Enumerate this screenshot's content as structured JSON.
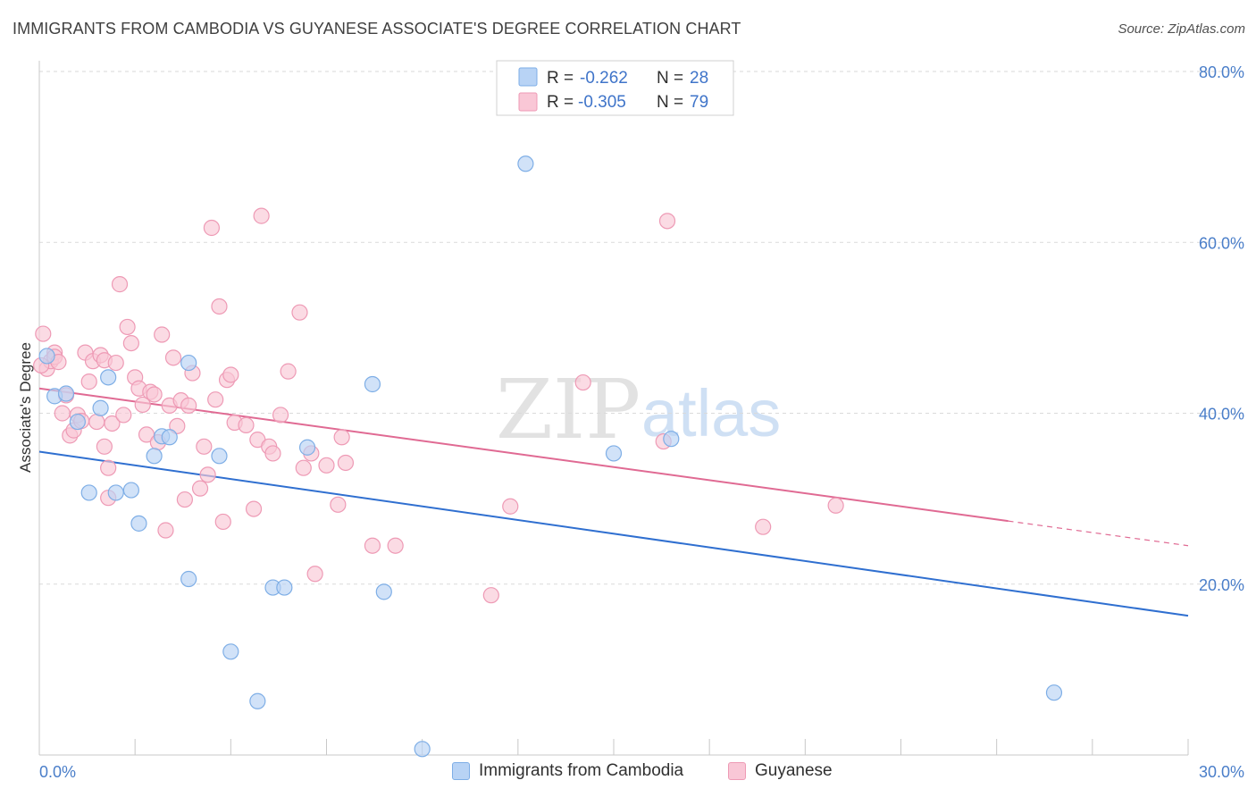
{
  "header": {
    "title": "IMMIGRANTS FROM CAMBODIA VS GUYANESE ASSOCIATE'S DEGREE CORRELATION CHART",
    "source": "Source: ZipAtlas.com"
  },
  "watermark": {
    "zip": "ZIP",
    "atlas": "atlas"
  },
  "legend": {
    "rows": [
      {
        "r_label": "R =",
        "r_value": "-0.262",
        "n_label": "N =",
        "n_value": "28"
      },
      {
        "r_label": "R =",
        "r_value": "-0.305",
        "n_label": "N =",
        "n_value": "79"
      }
    ]
  },
  "bottom_legend": {
    "series1": "Immigrants from Cambodia",
    "series2": "Guyanese"
  },
  "colors": {
    "series1_fill": "#b8d3f5",
    "series1_stroke": "#7eaee6",
    "series1_line": "#2f6fd0",
    "series2_fill": "#f9c7d6",
    "series2_stroke": "#ee9ab5",
    "series2_line": "#e06a93",
    "tick": "#4a7ec9",
    "grid": "#dadada"
  },
  "chart_data": {
    "type": "scatter",
    "title": "IMMIGRANTS FROM CAMBODIA VS GUYANESE ASSOCIATE'S DEGREE CORRELATION CHART",
    "xlabel": "",
    "ylabel": "Associate's Degree",
    "xlim": [
      0,
      30
    ],
    "ylim": [
      0,
      80
    ],
    "x_ticks": [
      "0.0%",
      "30.0%"
    ],
    "y_ticks": [
      "20.0%",
      "40.0%",
      "60.0%",
      "80.0%"
    ],
    "y_tick_values": [
      20,
      40,
      60,
      80
    ],
    "grid": "horizontal dashed",
    "legend_position": "top-center",
    "series": [
      {
        "name": "Immigrants from Cambodia",
        "r": -0.262,
        "n": 28,
        "trend": {
          "x": [
            0,
            30
          ],
          "y": [
            35.5,
            16.3
          ],
          "dashed_from": null
        },
        "points": [
          [
            0.2,
            46.7
          ],
          [
            0.4,
            42.0
          ],
          [
            0.7,
            42.3
          ],
          [
            1.0,
            39.0
          ],
          [
            1.3,
            30.7
          ],
          [
            1.6,
            40.6
          ],
          [
            1.8,
            44.2
          ],
          [
            2.0,
            30.7
          ],
          [
            2.4,
            31.0
          ],
          [
            2.6,
            27.1
          ],
          [
            3.0,
            35.0
          ],
          [
            3.2,
            37.3
          ],
          [
            3.4,
            37.2
          ],
          [
            3.9,
            20.6
          ],
          [
            3.9,
            45.9
          ],
          [
            4.7,
            35.0
          ],
          [
            5.0,
            12.1
          ],
          [
            5.7,
            6.3
          ],
          [
            6.1,
            19.6
          ],
          [
            6.4,
            19.6
          ],
          [
            7.0,
            36.0
          ],
          [
            8.7,
            43.4
          ],
          [
            9.0,
            19.1
          ],
          [
            10.0,
            0.7
          ],
          [
            12.7,
            69.2
          ],
          [
            15.0,
            35.3
          ],
          [
            16.5,
            37.0
          ],
          [
            26.5,
            7.3
          ]
        ]
      },
      {
        "name": "Guyanese",
        "r": -0.305,
        "n": 79,
        "trend": {
          "x": [
            0,
            30
          ],
          "y": [
            42.9,
            24.5
          ],
          "dashed_from": 25.3
        },
        "points": [
          [
            0.1,
            49.3
          ],
          [
            0.2,
            45.2
          ],
          [
            0.3,
            46.1
          ],
          [
            0.4,
            47.1
          ],
          [
            0.4,
            46.6
          ],
          [
            0.5,
            46.0
          ],
          [
            0.6,
            40.0
          ],
          [
            0.7,
            42.1
          ],
          [
            0.8,
            37.4
          ],
          [
            0.9,
            38.0
          ],
          [
            1.0,
            39.8
          ],
          [
            1.1,
            39.1
          ],
          [
            1.2,
            47.1
          ],
          [
            1.3,
            43.7
          ],
          [
            1.4,
            46.1
          ],
          [
            1.5,
            39.0
          ],
          [
            1.6,
            46.8
          ],
          [
            1.7,
            46.2
          ],
          [
            1.7,
            36.1
          ],
          [
            1.8,
            33.6
          ],
          [
            1.8,
            30.1
          ],
          [
            1.9,
            38.8
          ],
          [
            2.0,
            45.9
          ],
          [
            2.1,
            55.1
          ],
          [
            2.2,
            39.8
          ],
          [
            2.3,
            50.1
          ],
          [
            2.4,
            48.2
          ],
          [
            2.5,
            44.2
          ],
          [
            2.6,
            42.9
          ],
          [
            2.7,
            41.0
          ],
          [
            2.8,
            37.5
          ],
          [
            2.9,
            42.5
          ],
          [
            3.0,
            42.2
          ],
          [
            3.1,
            36.6
          ],
          [
            3.2,
            49.2
          ],
          [
            3.3,
            26.3
          ],
          [
            3.4,
            40.9
          ],
          [
            3.5,
            46.5
          ],
          [
            3.6,
            38.5
          ],
          [
            3.7,
            41.5
          ],
          [
            3.8,
            29.9
          ],
          [
            3.9,
            40.9
          ],
          [
            4.0,
            44.7
          ],
          [
            4.2,
            31.2
          ],
          [
            4.3,
            36.1
          ],
          [
            4.4,
            32.8
          ],
          [
            4.5,
            61.7
          ],
          [
            4.6,
            41.6
          ],
          [
            4.7,
            52.5
          ],
          [
            4.8,
            27.3
          ],
          [
            4.9,
            43.9
          ],
          [
            5.0,
            44.5
          ],
          [
            5.1,
            38.9
          ],
          [
            5.4,
            38.6
          ],
          [
            5.6,
            28.8
          ],
          [
            5.7,
            36.9
          ],
          [
            5.8,
            63.1
          ],
          [
            6.0,
            36.1
          ],
          [
            6.1,
            35.3
          ],
          [
            6.3,
            39.8
          ],
          [
            6.5,
            44.9
          ],
          [
            6.8,
            51.8
          ],
          [
            6.9,
            33.6
          ],
          [
            7.1,
            35.3
          ],
          [
            7.2,
            21.2
          ],
          [
            7.5,
            33.9
          ],
          [
            7.8,
            29.3
          ],
          [
            7.9,
            37.2
          ],
          [
            8.0,
            34.2
          ],
          [
            8.7,
            24.5
          ],
          [
            9.3,
            24.5
          ],
          [
            11.8,
            18.7
          ],
          [
            12.3,
            29.1
          ],
          [
            14.2,
            43.6
          ],
          [
            16.4,
            62.5
          ],
          [
            16.3,
            36.7
          ],
          [
            18.9,
            26.7
          ],
          [
            20.8,
            29.2
          ],
          [
            0.05,
            45.6
          ]
        ]
      }
    ]
  }
}
